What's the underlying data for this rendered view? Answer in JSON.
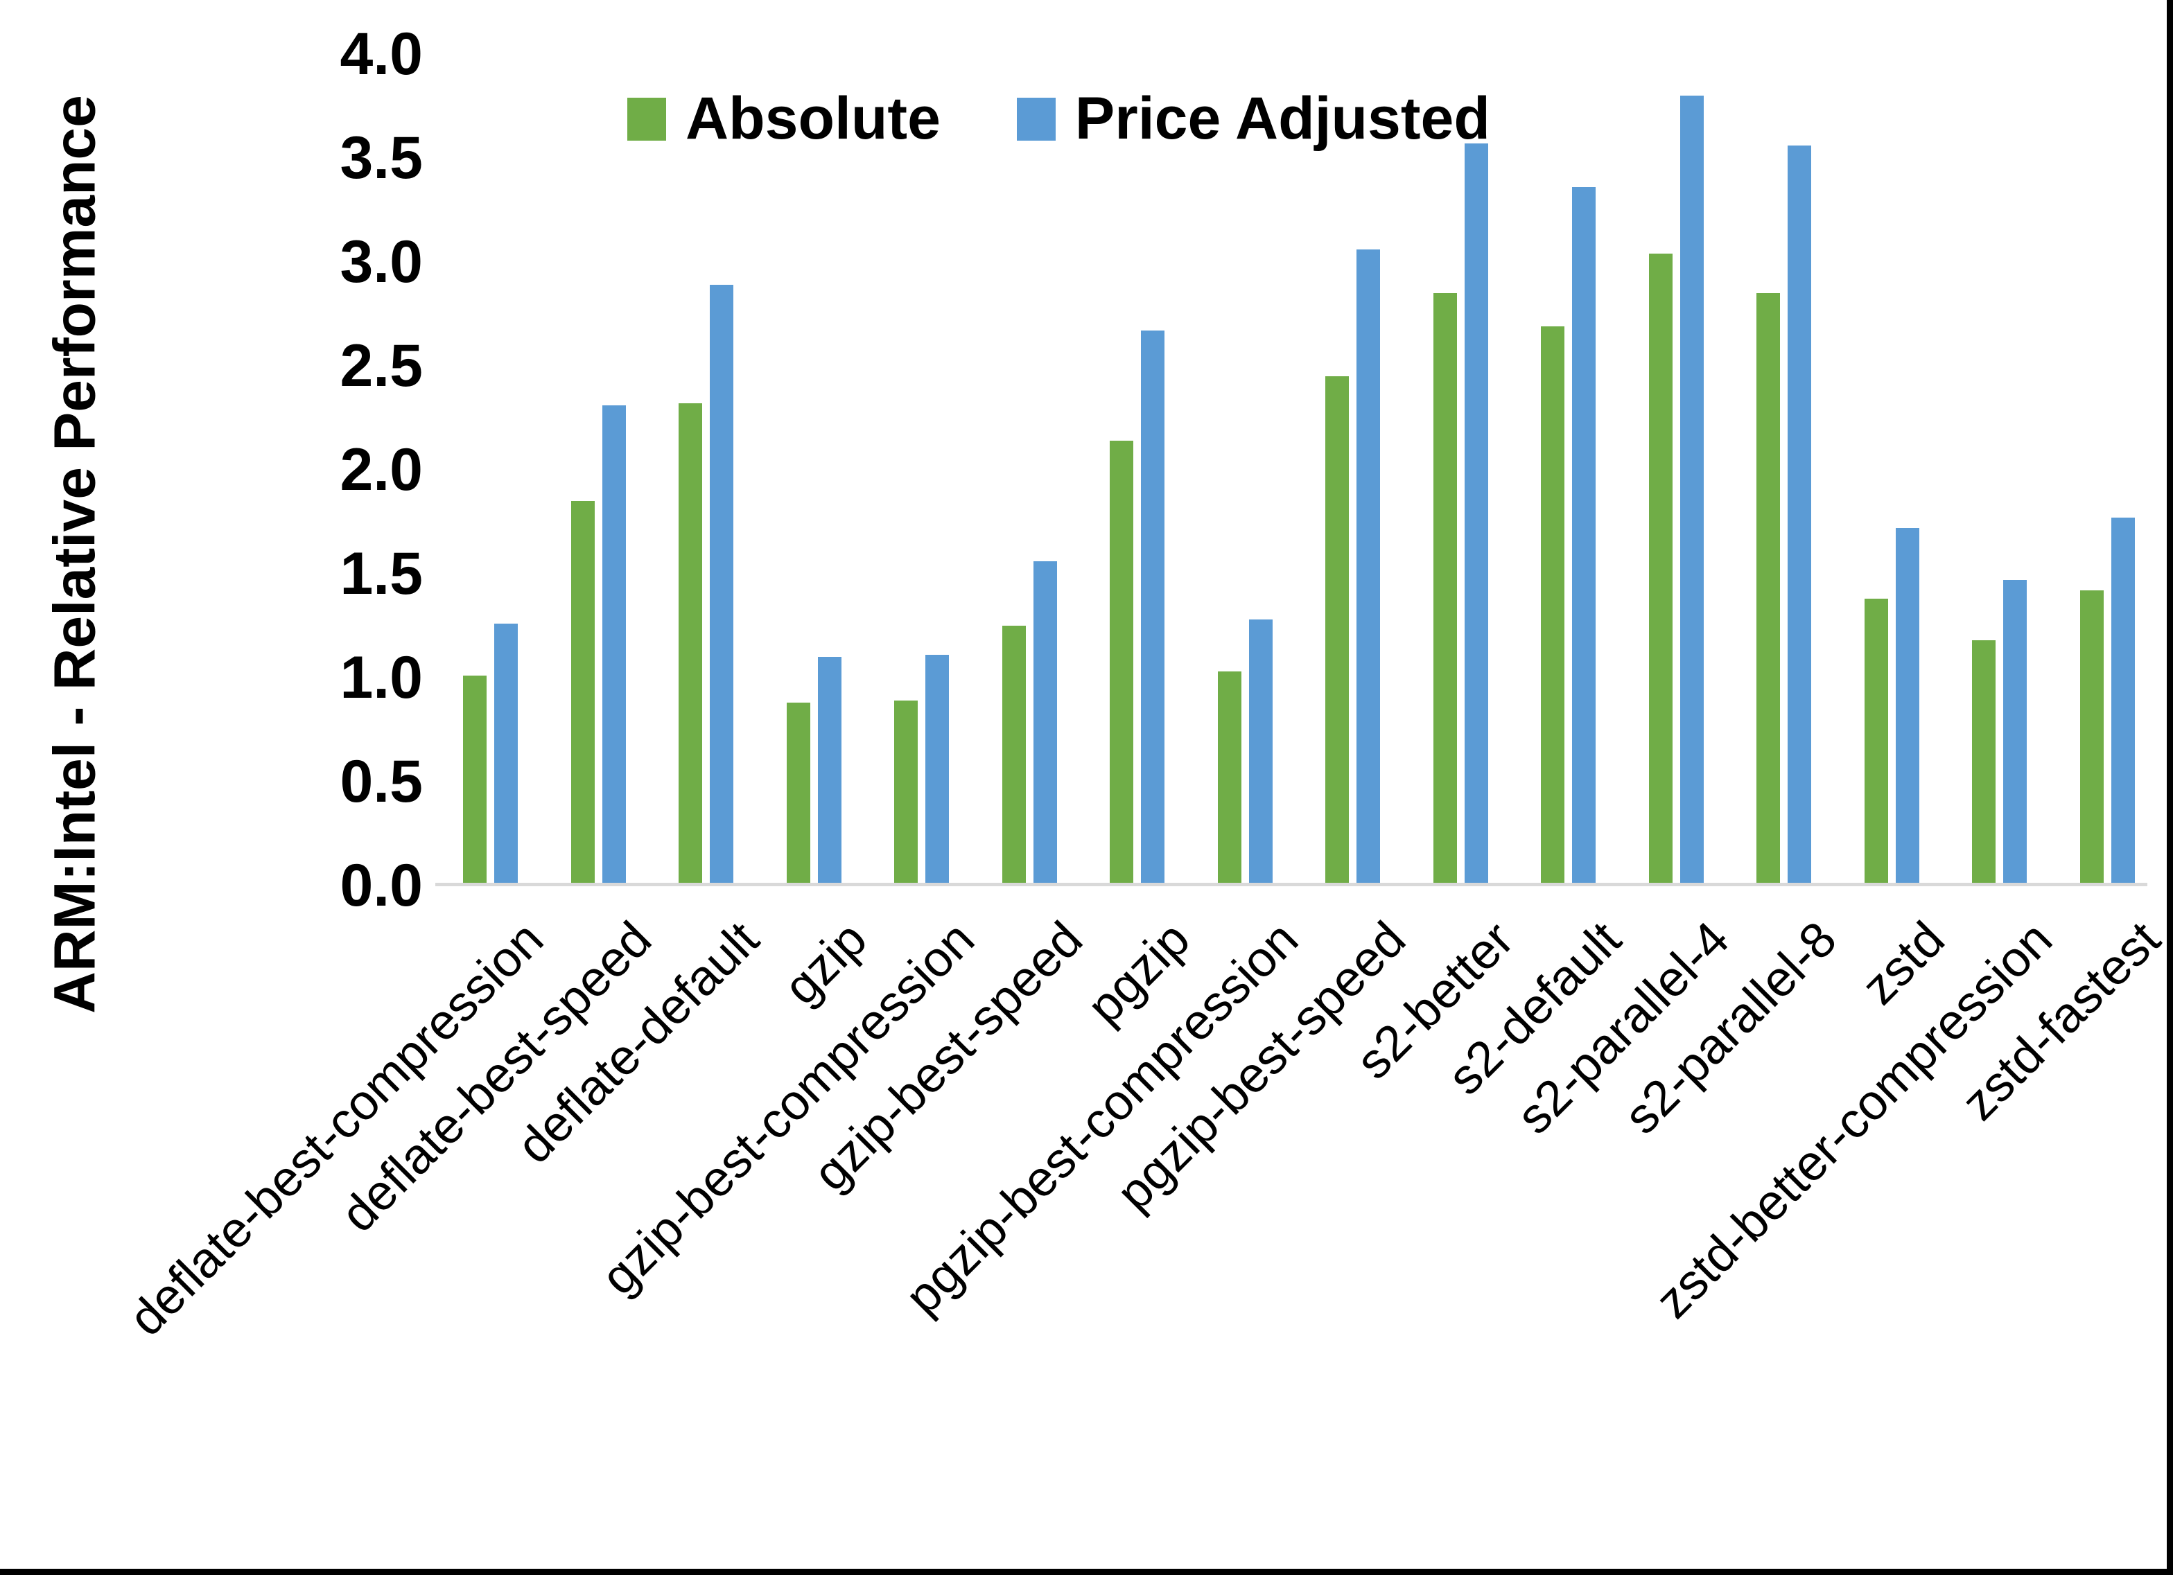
{
  "figure": {
    "background": "#FFFFFF",
    "frame_color": "#000000"
  },
  "legend": {
    "position": "top-center",
    "items": [
      {
        "label": "Absolute",
        "color": "#70AD47"
      },
      {
        "label": "Price Adjusted",
        "color": "#5B9BD5"
      }
    ]
  },
  "y_axis": {
    "title": "ARM:Intel - Relative Performance",
    "tick_labels": [
      "0.0",
      "0.5",
      "1.0",
      "1.5",
      "2.0",
      "2.5",
      "3.0",
      "3.5",
      "4.0"
    ],
    "axis_line_color": "#D9D9D9"
  },
  "chart_data": {
    "type": "bar",
    "title": "",
    "xlabel": "",
    "ylabel": "ARM:Intel - Relative Performance",
    "ylim": [
      0.0,
      4.0
    ],
    "ytick_step": 0.5,
    "yticks": [
      "0.0",
      "0.5",
      "1.0",
      "1.5",
      "2.0",
      "2.5",
      "3.0",
      "3.5",
      "4.0"
    ],
    "grid": false,
    "legend_position": "top",
    "categories": [
      "deflate-best-compression",
      "deflate-best-speed",
      "deflate-default",
      "gzip",
      "gzip-best-compression",
      "gzip-best-speed",
      "pgzip",
      "pgzip-best-compression",
      "pgzip-best-speed",
      "s2-better",
      "s2-default",
      "s2-parallel-4",
      "s2-parallel-8",
      "zstd",
      "zstd-better-compression",
      "zstd-fastest"
    ],
    "series": [
      {
        "name": "Absolute",
        "color": "#70AD47",
        "values": [
          1.01,
          1.85,
          2.32,
          0.88,
          0.89,
          1.25,
          2.14,
          1.03,
          2.45,
          2.85,
          2.69,
          3.04,
          2.85,
          1.38,
          1.18,
          1.42
        ]
      },
      {
        "name": "Price Adjusted",
        "color": "#5B9BD5",
        "values": [
          1.26,
          2.31,
          2.89,
          1.1,
          1.11,
          1.56,
          2.67,
          1.28,
          3.06,
          3.57,
          3.36,
          3.8,
          3.56,
          1.72,
          1.47,
          1.77
        ]
      }
    ]
  }
}
